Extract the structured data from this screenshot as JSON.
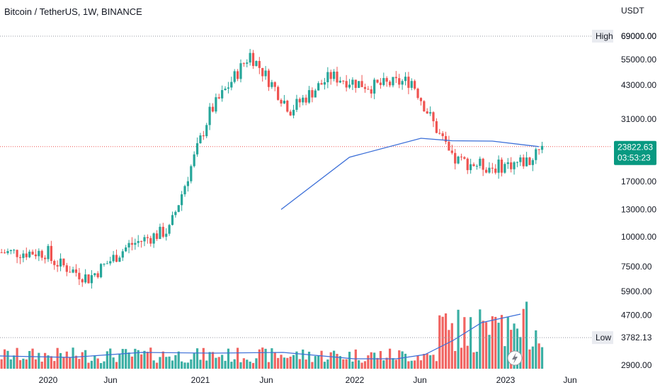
{
  "header": {
    "title": "Bitcoin / TetherUS, 1W, BINANCE"
  },
  "axis": {
    "currency": "USDT"
  },
  "price_tag": {
    "price": "23822.63",
    "countdown": "03:53:23"
  },
  "colors": {
    "up": "#26a69a",
    "down": "#ef5350",
    "ma": "#3c6fd8",
    "axis_text": "#131722",
    "tag_bg": "#089981",
    "high_line": "#9598a1",
    "last_line": "#ef5350"
  },
  "icons": {
    "axis_badge": "lightning-icon"
  },
  "chart_data": {
    "type": "candlestick",
    "yscale": "log",
    "ylim": [
      2700,
      92000
    ],
    "yticks": [
      "69000.00",
      "55000.00",
      "43000.00",
      "31000.00",
      "17000.00",
      "13000.00",
      "10000.00",
      "7500.00",
      "5900.00",
      "4700.00",
      "2900.00"
    ],
    "xticks": [
      "2020",
      "Jun",
      "2021",
      "Jun",
      "2022",
      "Jun",
      "2023",
      "Jun"
    ],
    "reference_lines": [
      {
        "label": "High",
        "value": "69000.00"
      },
      {
        "label": "Low",
        "value": "3782.13"
      }
    ],
    "last_price": 23822.63,
    "x_dates": [
      "2020-01-06",
      "2020-04-06",
      "2020-07-06",
      "2020-10-05",
      "2021-01-04",
      "2021-04-05",
      "2021-07-05",
      "2021-10-04",
      "2022-01-03",
      "2022-04-04",
      "2022-07-04",
      "2022-10-03",
      "2023-01-02"
    ],
    "close": [
      8100,
      6700,
      9200,
      10700,
      33000,
      58000,
      34000,
      47000,
      42500,
      45000,
      21000,
      19500,
      21000
    ],
    "moving_average": {
      "x_dates": [
        "2021-06-14",
        "2021-11-15",
        "2022-04-25",
        "2022-07-04",
        "2022-10-03",
        "2023-01-16"
      ],
      "values": [
        13000,
        21500,
        25800,
        25200,
        25100,
        23800
      ]
    }
  }
}
